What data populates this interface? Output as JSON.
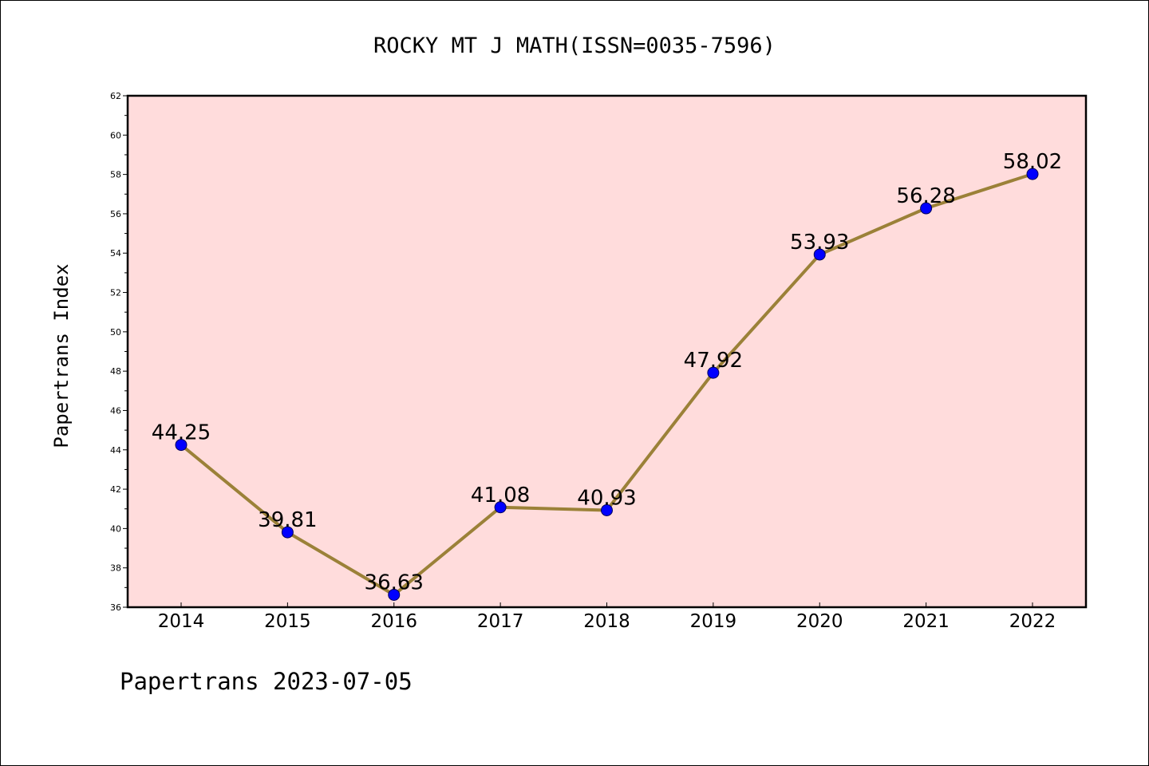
{
  "chart_data": {
    "type": "line",
    "title": "ROCKY MT J MATH(ISSN=0035-7596)",
    "xlabel": "",
    "ylabel": "Papertrans Index",
    "footer": "Papertrans 2023-07-05",
    "categories": [
      "2014",
      "2015",
      "2016",
      "2017",
      "2018",
      "2019",
      "2020",
      "2021",
      "2022"
    ],
    "series": [
      {
        "values": [
          44.25,
          39.81,
          36.63,
          41.08,
          40.93,
          47.92,
          53.93,
          56.28,
          58.02
        ],
        "labels": [
          "44.25",
          "39.81",
          "36.63",
          "41.08",
          "40.93",
          "47.92",
          "53.93",
          "56.28",
          "58.02"
        ]
      }
    ],
    "ylim": [
      36,
      62
    ],
    "yticks": [
      "36",
      "38",
      "40",
      "42",
      "44",
      "46",
      "48",
      "50",
      "52",
      "54",
      "56",
      "58",
      "60",
      "62"
    ],
    "grid": false,
    "legend": "none",
    "colors": {
      "plot_background": "#ffdcdc",
      "line": "#9b8138",
      "marker": "#0000ff"
    }
  }
}
